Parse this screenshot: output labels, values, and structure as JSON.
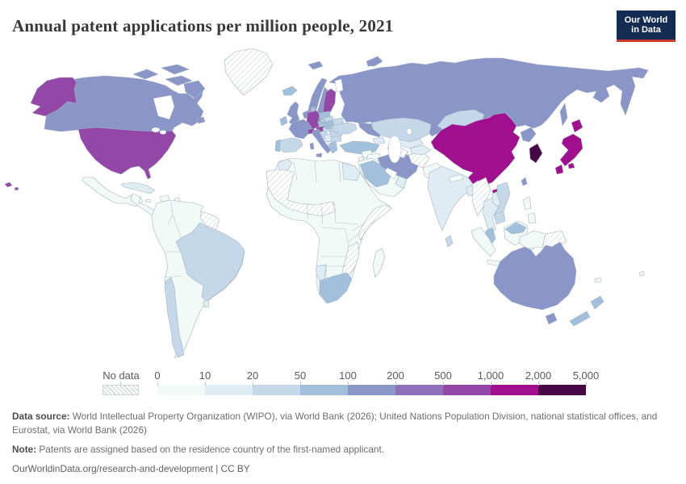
{
  "header": {
    "title": "Annual patent applications per million people, 2021",
    "logo_line1": "Our World",
    "logo_line2": "in Data",
    "logo_bg": "#142c52",
    "logo_accent": "#ca3a2e"
  },
  "legend": {
    "no_data_label": "No data",
    "ticks": [
      "0",
      "10",
      "20",
      "50",
      "100",
      "200",
      "500",
      "1,000",
      "2,000",
      "5,000"
    ],
    "colors": [
      "#f2faf7",
      "#e0ecf3",
      "#c5d8ea",
      "#a2bfdc",
      "#8b96c8",
      "#8d70b8",
      "#9348a8",
      "#a00f8d",
      "#470745"
    ],
    "no_data_hatch_color": "#ccd2d8"
  },
  "footer": {
    "data_source_label": "Data source:",
    "data_source_text": " World Intellectual Property Organization (WIPO), via World Bank (2026); United Nations Population Division, national statistical offices, and Eurostat, via World Bank (2026)",
    "note_label": "Note:",
    "note_text": " Patents are assigned based on the residence country of the first-named applicant.",
    "credit": "OurWorldinData.org/research-and-development | CC BY"
  },
  "chart_data": {
    "type": "choropleth_map",
    "title": "Annual patent applications per million people, 2021",
    "unit": "patent applications per million people",
    "legend_bins": [
      0,
      10,
      20,
      50,
      100,
      200,
      500,
      1000,
      2000,
      5000
    ],
    "bin_colors": [
      "#f2faf7",
      "#e0ecf3",
      "#c5d8ea",
      "#a2bfdc",
      "#8b96c8",
      "#8d70b8",
      "#9348a8",
      "#a00f8d",
      "#470745"
    ],
    "countries": [
      {
        "name": "United States",
        "value_bin": "500-1,000"
      },
      {
        "name": "Canada",
        "value_bin": "100-200"
      },
      {
        "name": "Greenland",
        "value_bin": "No data"
      },
      {
        "name": "Mexico",
        "value_bin": "0-10"
      },
      {
        "name": "Cuba",
        "value_bin": "10-20"
      },
      {
        "name": "Brazil",
        "value_bin": "20-50"
      },
      {
        "name": "Chile",
        "value_bin": "20-50"
      },
      {
        "name": "Argentina",
        "value_bin": "0-10"
      },
      {
        "name": "Peru",
        "value_bin": "0-10"
      },
      {
        "name": "Colombia",
        "value_bin": "0-10"
      },
      {
        "name": "Venezuela",
        "value_bin": "0-10"
      },
      {
        "name": "Uruguay",
        "value_bin": "10-20"
      },
      {
        "name": "Guyana",
        "value_bin": "No data"
      },
      {
        "name": "Suriname",
        "value_bin": "No data"
      },
      {
        "name": "French Guiana",
        "value_bin": "No data"
      },
      {
        "name": "United Kingdom",
        "value_bin": "100-200"
      },
      {
        "name": "Ireland",
        "value_bin": "50-100"
      },
      {
        "name": "France",
        "value_bin": "100-200"
      },
      {
        "name": "Spain",
        "value_bin": "20-50"
      },
      {
        "name": "Portugal",
        "value_bin": "50-100"
      },
      {
        "name": "Germany",
        "value_bin": "500-1,000"
      },
      {
        "name": "Switzerland",
        "value_bin": "500-1,000"
      },
      {
        "name": "Austria",
        "value_bin": "500-1,000"
      },
      {
        "name": "Italy",
        "value_bin": "100-200"
      },
      {
        "name": "Netherlands",
        "value_bin": "100-200"
      },
      {
        "name": "Denmark",
        "value_bin": "50-100"
      },
      {
        "name": "Norway",
        "value_bin": "100-200"
      },
      {
        "name": "Sweden",
        "value_bin": "100-200"
      },
      {
        "name": "Finland",
        "value_bin": "500-1,000"
      },
      {
        "name": "Iceland",
        "value_bin": "50-100"
      },
      {
        "name": "Poland",
        "value_bin": "50-100"
      },
      {
        "name": "Czechia",
        "value_bin": "50-100"
      },
      {
        "name": "Ukraine",
        "value_bin": "20-50"
      },
      {
        "name": "Belarus",
        "value_bin": "20-50"
      },
      {
        "name": "Romania",
        "value_bin": "20-50"
      },
      {
        "name": "Bulgaria",
        "value_bin": "20-50"
      },
      {
        "name": "Greece",
        "value_bin": "50-100"
      },
      {
        "name": "Hungary",
        "value_bin": "20-50"
      },
      {
        "name": "Russia",
        "value_bin": "100-200"
      },
      {
        "name": "Turkey",
        "value_bin": "50-100"
      },
      {
        "name": "Iran",
        "value_bin": "100-200"
      },
      {
        "name": "Saudi Arabia",
        "value_bin": "50-100"
      },
      {
        "name": "Oman",
        "value_bin": "10-20"
      },
      {
        "name": "Egypt",
        "value_bin": "10-20"
      },
      {
        "name": "Morocco",
        "value_bin": "10-20"
      },
      {
        "name": "Iraq",
        "value_bin": "0-10"
      },
      {
        "name": "Syria",
        "value_bin": "0-10"
      },
      {
        "name": "Yemen",
        "value_bin": "0-10"
      },
      {
        "name": "Kazakhstan",
        "value_bin": "20-50"
      },
      {
        "name": "Uzbekistan",
        "value_bin": "10-20"
      },
      {
        "name": "Turkmenistan",
        "value_bin": "No data"
      },
      {
        "name": "Afghanistan",
        "value_bin": "No data"
      },
      {
        "name": "Pakistan",
        "value_bin": "0-10"
      },
      {
        "name": "India",
        "value_bin": "10-20"
      },
      {
        "name": "Bangladesh",
        "value_bin": "10-20"
      },
      {
        "name": "Sri Lanka",
        "value_bin": "20-50"
      },
      {
        "name": "Nepal",
        "value_bin": "0-10"
      },
      {
        "name": "Myanmar",
        "value_bin": "No data"
      },
      {
        "name": "Thailand",
        "value_bin": "10-20"
      },
      {
        "name": "Laos",
        "value_bin": "10-20"
      },
      {
        "name": "Vietnam",
        "value_bin": "20-50"
      },
      {
        "name": "Cambodia",
        "value_bin": "20-50"
      },
      {
        "name": "Malaysia",
        "value_bin": "50-100"
      },
      {
        "name": "Indonesia",
        "value_bin": "0-10"
      },
      {
        "name": "Philippines",
        "value_bin": "0-10"
      },
      {
        "name": "China",
        "value_bin": "1,000-2,000"
      },
      {
        "name": "Mongolia",
        "value_bin": "20-50"
      },
      {
        "name": "North Korea",
        "value_bin": "100-200"
      },
      {
        "name": "South Korea",
        "value_bin": "2,000-5,000"
      },
      {
        "name": "Japan",
        "value_bin": "1,000-2,000"
      },
      {
        "name": "Taiwan",
        "value_bin": "100-200"
      },
      {
        "name": "Australia",
        "value_bin": "100-200"
      },
      {
        "name": "New Zealand",
        "value_bin": "50-100"
      },
      {
        "name": "Papua New Guinea",
        "value_bin": "No data"
      },
      {
        "name": "South Africa",
        "value_bin": "50-100"
      },
      {
        "name": "Namibia",
        "value_bin": "10-20"
      },
      {
        "name": "Mozambique",
        "value_bin": "No data"
      },
      {
        "name": "Zimbabwe",
        "value_bin": "No data"
      },
      {
        "name": "Somalia",
        "value_bin": "No data"
      },
      {
        "name": "Mali",
        "value_bin": "No data"
      },
      {
        "name": "Niger",
        "value_bin": "No data"
      },
      {
        "name": "Mauritania",
        "value_bin": "No data"
      },
      {
        "name": "Western Sahara",
        "value_bin": "No data"
      },
      {
        "name": "Madagascar",
        "value_bin": "0-10"
      },
      {
        "name": "Nigeria",
        "value_bin": "0-10"
      },
      {
        "name": "Ethiopia",
        "value_bin": "0-10"
      },
      {
        "name": "Kenya",
        "value_bin": "0-10"
      },
      {
        "name": "Democratic Republic of Congo",
        "value_bin": "0-10"
      },
      {
        "name": "Algeria",
        "value_bin": "0-10"
      },
      {
        "name": "Libya",
        "value_bin": "0-10"
      },
      {
        "name": "Sudan",
        "value_bin": "0-10"
      },
      {
        "name": "Tanzania",
        "value_bin": "0-10"
      },
      {
        "name": "Angola",
        "value_bin": "0-10"
      },
      {
        "name": "Botswana",
        "value_bin": "0-10"
      },
      {
        "name": "Zambia",
        "value_bin": "0-10"
      }
    ]
  }
}
